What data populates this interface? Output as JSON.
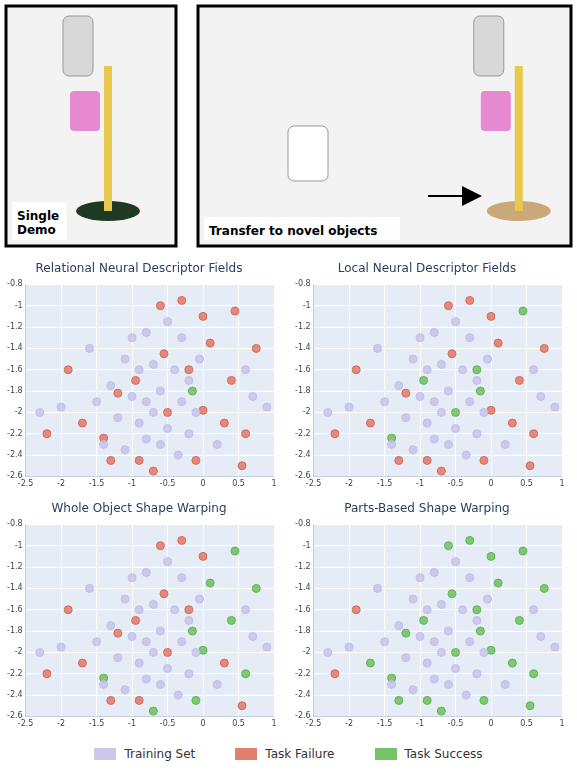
{
  "photos": [
    {
      "label": "Single Demo"
    },
    {
      "label": "Transfer to novel objects"
    }
  ],
  "chart_data": [
    {
      "type": "scatter",
      "title": "Relational Neural Descriptor Fields",
      "grid": true,
      "legend": "bottom",
      "xlim": [
        -2.5,
        1
      ],
      "xticks": [
        -2.5,
        -2,
        -1.5,
        -1,
        -0.5,
        0,
        0.5,
        1
      ],
      "ylim": [
        -2.6,
        -0.8
      ],
      "yticks": [
        -2.6,
        -2.4,
        -2.2,
        -2,
        -1.8,
        -1.6,
        -1.4,
        -1.2,
        -1,
        -0.8
      ],
      "series": [
        {
          "name": "Training Set",
          "color": "#c3bdea",
          "values": [
            [
              -1.0,
              -1.3
            ],
            [
              -0.8,
              -1.25
            ],
            [
              -0.5,
              -1.15
            ],
            [
              -0.3,
              -1.3
            ],
            [
              -1.1,
              -1.5
            ],
            [
              -0.9,
              -1.6
            ],
            [
              -0.7,
              -1.55
            ],
            [
              -0.4,
              -1.6
            ],
            [
              -0.2,
              -1.7
            ],
            [
              -1.3,
              -1.75
            ],
            [
              -1.0,
              -1.85
            ],
            [
              -0.8,
              -1.9
            ],
            [
              -0.6,
              -1.8
            ],
            [
              -0.3,
              -1.9
            ],
            [
              -0.1,
              -2.0
            ],
            [
              -1.2,
              -2.05
            ],
            [
              -0.9,
              -2.1
            ],
            [
              -0.7,
              -2.0
            ],
            [
              -0.5,
              -2.15
            ],
            [
              -0.2,
              -2.2
            ],
            [
              -1.4,
              -2.3
            ],
            [
              -1.1,
              -2.35
            ],
            [
              -0.8,
              -2.25
            ],
            [
              -0.6,
              -2.3
            ],
            [
              -0.35,
              -2.4
            ],
            [
              -2.0,
              -1.95
            ],
            [
              -2.3,
              -2.0
            ],
            [
              0.6,
              -1.6
            ],
            [
              0.7,
              -1.85
            ],
            [
              0.9,
              -1.95
            ],
            [
              -1.6,
              -1.4
            ],
            [
              0.2,
              -2.3
            ],
            [
              -0.05,
              -1.5
            ],
            [
              -1.5,
              -1.9
            ]
          ]
        },
        {
          "name": "Task Failure",
          "color": "#dc6a55",
          "values": [
            [
              0,
              -1.1
            ],
            [
              -1.2,
              -1.82
            ],
            [
              -0.5,
              -2.0
            ],
            [
              0,
              -1.98
            ],
            [
              -1.4,
              -2.24
            ],
            [
              0.45,
              -1.05
            ],
            [
              0.4,
              -1.7
            ],
            [
              -0.6,
              -1.0
            ],
            [
              -0.3,
              -0.95
            ],
            [
              -1.9,
              -1.6
            ],
            [
              -1.7,
              -2.1
            ],
            [
              -1.3,
              -2.45
            ],
            [
              -0.9,
              -2.45
            ],
            [
              -0.1,
              -2.45
            ],
            [
              0.3,
              -2.1
            ],
            [
              0.6,
              -2.2
            ],
            [
              0.75,
              -1.4
            ],
            [
              -0.2,
              -1.6
            ],
            [
              -0.95,
              -1.7
            ],
            [
              -0.55,
              -1.45
            ],
            [
              -2.2,
              -2.2
            ],
            [
              0.55,
              -2.5
            ],
            [
              -0.7,
              -2.55
            ],
            [
              0.1,
              -1.35
            ]
          ]
        },
        {
          "name": "Task Success",
          "color": "#5fb84e",
          "values": [
            [
              -0.15,
              -1.8
            ]
          ]
        }
      ]
    },
    {
      "type": "scatter",
      "title": "Local Neural Descriptor Fields",
      "grid": true,
      "legend": "bottom",
      "xlim": [
        -2.5,
        1
      ],
      "xticks": [
        -2.5,
        -2,
        -1.5,
        -1,
        -0.5,
        0,
        0.5,
        1
      ],
      "ylim": [
        -2.6,
        -0.8
      ],
      "yticks": [
        -2.6,
        -2.4,
        -2.2,
        -2,
        -1.8,
        -1.6,
        -1.4,
        -1.2,
        -1,
        -0.8
      ],
      "series": [
        {
          "name": "Training Set",
          "color": "#c3bdea",
          "values": [
            [
              -1.0,
              -1.3
            ],
            [
              -0.8,
              -1.25
            ],
            [
              -0.5,
              -1.15
            ],
            [
              -0.3,
              -1.3
            ],
            [
              -1.1,
              -1.5
            ],
            [
              -0.9,
              -1.6
            ],
            [
              -0.7,
              -1.55
            ],
            [
              -0.4,
              -1.6
            ],
            [
              -0.2,
              -1.7
            ],
            [
              -1.3,
              -1.75
            ],
            [
              -1.0,
              -1.85
            ],
            [
              -0.8,
              -1.9
            ],
            [
              -0.6,
              -1.8
            ],
            [
              -0.3,
              -1.9
            ],
            [
              -0.1,
              -2.0
            ],
            [
              -1.2,
              -2.05
            ],
            [
              -0.9,
              -2.1
            ],
            [
              -0.7,
              -2.0
            ],
            [
              -0.5,
              -2.15
            ],
            [
              -0.2,
              -2.2
            ],
            [
              -1.4,
              -2.3
            ],
            [
              -1.1,
              -2.35
            ],
            [
              -0.8,
              -2.25
            ],
            [
              -0.6,
              -2.3
            ],
            [
              -0.35,
              -2.4
            ],
            [
              -2.0,
              -1.95
            ],
            [
              -2.3,
              -2.0
            ],
            [
              0.6,
              -1.6
            ],
            [
              0.7,
              -1.85
            ],
            [
              0.9,
              -1.95
            ],
            [
              -1.6,
              -1.4
            ],
            [
              0.2,
              -2.3
            ],
            [
              -0.05,
              -1.5
            ],
            [
              -1.5,
              -1.9
            ]
          ]
        },
        {
          "name": "Task Failure",
          "color": "#dc6a55",
          "values": [
            [
              0,
              -1.1
            ],
            [
              -1.2,
              -1.82
            ],
            [
              0,
              -1.98
            ],
            [
              0.4,
              -1.7
            ],
            [
              -0.6,
              -1.0
            ],
            [
              -0.3,
              -0.95
            ],
            [
              -1.9,
              -1.6
            ],
            [
              -1.7,
              -2.1
            ],
            [
              -1.3,
              -2.45
            ],
            [
              -0.9,
              -2.45
            ],
            [
              -0.1,
              -2.45
            ],
            [
              0.3,
              -2.1
            ],
            [
              0.6,
              -2.2
            ],
            [
              0.75,
              -1.4
            ],
            [
              -0.55,
              -1.45
            ],
            [
              -2.2,
              -2.2
            ],
            [
              0.55,
              -2.5
            ],
            [
              -0.7,
              -2.55
            ],
            [
              0.1,
              -1.35
            ]
          ]
        },
        {
          "name": "Task Success",
          "color": "#5fb84e",
          "values": [
            [
              -0.5,
              -2.0
            ],
            [
              -1.4,
              -2.24
            ],
            [
              0.45,
              -1.05
            ],
            [
              -0.2,
              -1.6
            ],
            [
              -0.95,
              -1.7
            ],
            [
              -0.15,
              -1.8
            ]
          ]
        }
      ]
    },
    {
      "type": "scatter",
      "title": "Whole Object Shape Warping",
      "grid": true,
      "legend": "bottom",
      "xlim": [
        -2.5,
        1
      ],
      "xticks": [
        -2.5,
        -2,
        -1.5,
        -1,
        -0.5,
        0,
        0.5,
        1
      ],
      "ylim": [
        -2.6,
        -0.8
      ],
      "yticks": [
        -2.6,
        -2.4,
        -2.2,
        -2,
        -1.8,
        -1.6,
        -1.4,
        -1.2,
        -1,
        -0.8
      ],
      "series": [
        {
          "name": "Training Set",
          "color": "#c3bdea",
          "values": [
            [
              -1.0,
              -1.3
            ],
            [
              -0.8,
              -1.25
            ],
            [
              -0.5,
              -1.15
            ],
            [
              -0.3,
              -1.3
            ],
            [
              -1.1,
              -1.5
            ],
            [
              -0.9,
              -1.6
            ],
            [
              -0.7,
              -1.55
            ],
            [
              -0.4,
              -1.6
            ],
            [
              -0.2,
              -1.7
            ],
            [
              -1.3,
              -1.75
            ],
            [
              -1.0,
              -1.85
            ],
            [
              -0.8,
              -1.9
            ],
            [
              -0.6,
              -1.8
            ],
            [
              -0.3,
              -1.9
            ],
            [
              -0.1,
              -2.0
            ],
            [
              -1.2,
              -2.05
            ],
            [
              -0.9,
              -2.1
            ],
            [
              -0.7,
              -2.0
            ],
            [
              -0.5,
              -2.15
            ],
            [
              -0.2,
              -2.2
            ],
            [
              -1.4,
              -2.3
            ],
            [
              -1.1,
              -2.35
            ],
            [
              -0.8,
              -2.25
            ],
            [
              -0.6,
              -2.3
            ],
            [
              -0.35,
              -2.4
            ],
            [
              -2.0,
              -1.95
            ],
            [
              -2.3,
              -2.0
            ],
            [
              0.6,
              -1.6
            ],
            [
              0.7,
              -1.85
            ],
            [
              0.9,
              -1.95
            ],
            [
              -1.6,
              -1.4
            ],
            [
              0.2,
              -2.3
            ],
            [
              -0.05,
              -1.5
            ],
            [
              -1.5,
              -1.9
            ]
          ]
        },
        {
          "name": "Task Failure",
          "color": "#dc6a55",
          "values": [
            [
              0,
              -1.1
            ],
            [
              -1.2,
              -1.82
            ],
            [
              -0.5,
              -2.0
            ],
            [
              -0.6,
              -1.0
            ],
            [
              -0.3,
              -0.95
            ],
            [
              -1.9,
              -1.6
            ],
            [
              -1.7,
              -2.1
            ],
            [
              -1.3,
              -2.45
            ],
            [
              -0.9,
              -2.45
            ],
            [
              0.3,
              -2.1
            ],
            [
              -0.2,
              -1.6
            ],
            [
              -0.95,
              -1.7
            ],
            [
              -0.55,
              -1.45
            ],
            [
              -2.2,
              -2.2
            ],
            [
              0.55,
              -2.5
            ]
          ]
        },
        {
          "name": "Task Success",
          "color": "#5fb84e",
          "values": [
            [
              0,
              -1.98
            ],
            [
              -1.4,
              -2.24
            ],
            [
              0.45,
              -1.05
            ],
            [
              0.4,
              -1.7
            ],
            [
              -0.1,
              -2.45
            ],
            [
              0.6,
              -2.2
            ],
            [
              0.75,
              -1.4
            ],
            [
              -0.7,
              -2.55
            ],
            [
              0.1,
              -1.35
            ],
            [
              -0.15,
              -1.8
            ]
          ]
        }
      ]
    },
    {
      "type": "scatter",
      "title": "Parts-Based Shape Warping",
      "grid": true,
      "legend": "bottom",
      "xlim": [
        -2.5,
        1
      ],
      "xticks": [
        -2.5,
        -2,
        -1.5,
        -1,
        -0.5,
        0,
        0.5,
        1
      ],
      "ylim": [
        -2.6,
        -0.8
      ],
      "yticks": [
        -2.6,
        -2.4,
        -2.2,
        -2,
        -1.8,
        -1.6,
        -1.4,
        -1.2,
        -1,
        -0.8
      ],
      "series": [
        {
          "name": "Training Set",
          "color": "#c3bdea",
          "values": [
            [
              -1.0,
              -1.3
            ],
            [
              -0.8,
              -1.25
            ],
            [
              -0.5,
              -1.15
            ],
            [
              -0.3,
              -1.3
            ],
            [
              -1.1,
              -1.5
            ],
            [
              -0.9,
              -1.6
            ],
            [
              -0.7,
              -1.55
            ],
            [
              -0.4,
              -1.6
            ],
            [
              -0.2,
              -1.7
            ],
            [
              -1.3,
              -1.75
            ],
            [
              -1.0,
              -1.85
            ],
            [
              -0.8,
              -1.9
            ],
            [
              -0.6,
              -1.8
            ],
            [
              -0.3,
              -1.9
            ],
            [
              -0.1,
              -2.0
            ],
            [
              -1.2,
              -2.05
            ],
            [
              -0.9,
              -2.1
            ],
            [
              -0.7,
              -2.0
            ],
            [
              -0.5,
              -2.15
            ],
            [
              -0.2,
              -2.2
            ],
            [
              -1.4,
              -2.3
            ],
            [
              -1.1,
              -2.35
            ],
            [
              -0.8,
              -2.25
            ],
            [
              -0.6,
              -2.3
            ],
            [
              -0.35,
              -2.4
            ],
            [
              -2.0,
              -1.95
            ],
            [
              -2.3,
              -2.0
            ],
            [
              0.6,
              -1.6
            ],
            [
              0.7,
              -1.85
            ],
            [
              0.9,
              -1.95
            ],
            [
              -1.6,
              -1.4
            ],
            [
              0.2,
              -2.3
            ],
            [
              -0.05,
              -1.5
            ],
            [
              -1.5,
              -1.9
            ]
          ]
        },
        {
          "name": "Task Failure",
          "color": "#dc6a55",
          "values": [
            [
              -1.9,
              -1.6
            ],
            [
              -2.2,
              -2.2
            ]
          ]
        },
        {
          "name": "Task Success",
          "color": "#5fb84e",
          "values": [
            [
              0,
              -1.1
            ],
            [
              -1.2,
              -1.82
            ],
            [
              -0.5,
              -2.0
            ],
            [
              0,
              -1.98
            ],
            [
              -1.4,
              -2.24
            ],
            [
              0.45,
              -1.05
            ],
            [
              0.4,
              -1.7
            ],
            [
              -0.6,
              -1.0
            ],
            [
              -0.3,
              -0.95
            ],
            [
              -1.7,
              -2.1
            ],
            [
              -1.3,
              -2.45
            ],
            [
              -0.9,
              -2.45
            ],
            [
              -0.1,
              -2.45
            ],
            [
              0.3,
              -2.1
            ],
            [
              0.6,
              -2.2
            ],
            [
              0.75,
              -1.4
            ],
            [
              -0.2,
              -1.6
            ],
            [
              -0.95,
              -1.7
            ],
            [
              -0.55,
              -1.45
            ],
            [
              0.55,
              -2.5
            ],
            [
              -0.7,
              -2.55
            ],
            [
              0.1,
              -1.35
            ],
            [
              -0.15,
              -1.8
            ]
          ]
        }
      ]
    }
  ]
}
